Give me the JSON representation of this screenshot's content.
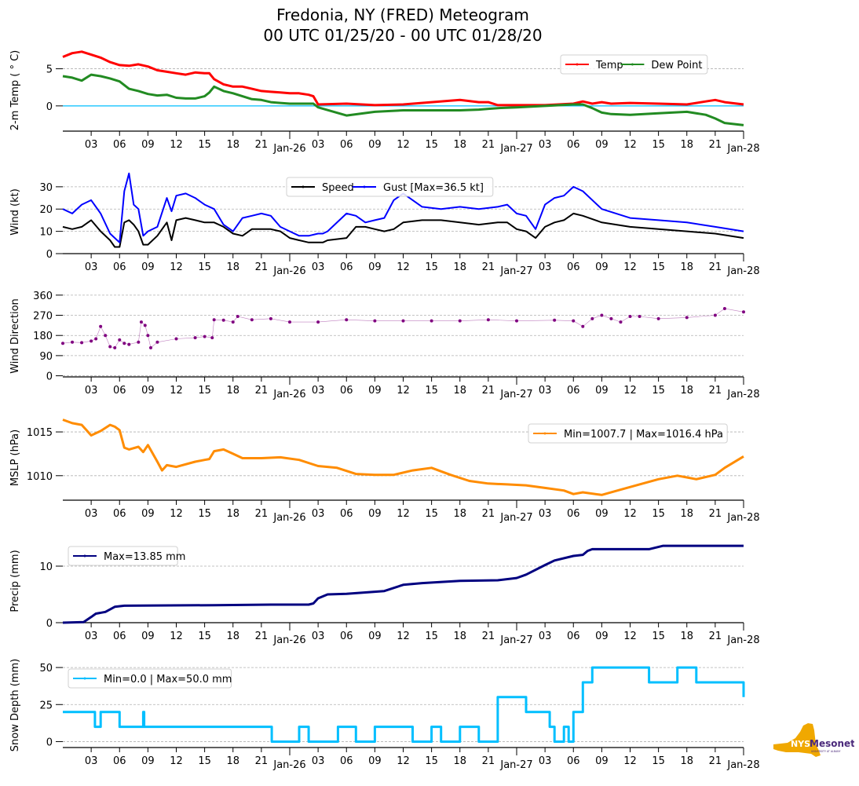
{
  "title": {
    "line1": "Fredonia, NY (FRED) Meteogram",
    "line2": "00 UTC 01/25/20 - 00 UTC 01/28/20"
  },
  "logo": {
    "text": "NYS",
    "brand": "Mesonet",
    "sub": "UNIVERSITY AT ALBANY",
    "gold": "#f0a800",
    "purple": "#4b2a7b"
  },
  "chart_data": [
    {
      "id": "temp",
      "type": "line",
      "ylabel": "2-m Temp ( ° C)",
      "ylim": [
        -3.4,
        7.6
      ],
      "yticks": [
        0,
        5
      ],
      "grid": "horizontal-dashed",
      "legend": {
        "placement": "top-right",
        "ncol": 2
      },
      "reference_line": {
        "y": 0,
        "color": "#00bfff"
      },
      "x_hours": [
        0,
        1,
        2,
        3,
        4,
        5,
        6,
        7,
        8,
        9,
        10,
        11,
        12,
        13,
        14,
        15,
        15.5,
        16,
        17,
        18,
        19,
        20,
        21,
        22,
        23,
        24,
        25,
        26,
        26.5,
        27,
        30,
        33,
        36,
        39,
        42,
        44,
        45,
        46,
        48,
        51,
        54,
        55,
        56,
        57,
        58,
        60,
        63,
        66,
        68,
        69,
        70,
        72
      ],
      "series": [
        {
          "name": "Temp",
          "color": "#ff0000",
          "values": [
            6.6,
            7.1,
            7.3,
            6.9,
            6.5,
            5.9,
            5.5,
            5.4,
            5.6,
            5.3,
            4.8,
            4.6,
            4.4,
            4.2,
            4.5,
            4.4,
            4.4,
            3.6,
            2.9,
            2.6,
            2.6,
            2.3,
            2.0,
            1.9,
            1.8,
            1.7,
            1.7,
            1.5,
            1.3,
            0.2,
            0.3,
            0.1,
            0.2,
            0.5,
            0.8,
            0.5,
            0.5,
            0.1,
            0.1,
            0.1,
            0.3,
            0.6,
            0.3,
            0.5,
            0.3,
            0.4,
            0.3,
            0.2,
            0.6,
            0.8,
            0.5,
            0.2
          ]
        },
        {
          "name": "Dew Point",
          "color": "#228b22",
          "values": [
            4.0,
            3.8,
            3.4,
            4.2,
            4.0,
            3.7,
            3.3,
            2.3,
            2.0,
            1.6,
            1.4,
            1.5,
            1.1,
            1.0,
            1.0,
            1.3,
            1.8,
            2.6,
            2.0,
            1.7,
            1.3,
            0.9,
            0.8,
            0.5,
            0.4,
            0.3,
            0.3,
            0.3,
            0.3,
            -0.2,
            -1.3,
            -0.8,
            -0.6,
            -0.6,
            -0.6,
            -0.5,
            -0.4,
            -0.3,
            -0.2,
            0.0,
            0.2,
            0.2,
            -0.3,
            -0.9,
            -1.1,
            -1.2,
            -1.0,
            -0.8,
            -1.2,
            -1.7,
            -2.3,
            -2.6
          ]
        }
      ]
    },
    {
      "id": "wind",
      "type": "line",
      "ylabel": "Wind (kt)",
      "ylim": [
        0,
        37
      ],
      "yticks": [
        0,
        10,
        20,
        30
      ],
      "grid": "horizontal-dashed",
      "legend": {
        "placement": "top-center",
        "ncol": 2
      },
      "x_hours": [
        0,
        1,
        2,
        3,
        4,
        5,
        5.5,
        6,
        6.5,
        7,
        7.5,
        8,
        8.5,
        9,
        10,
        11,
        11.5,
        12,
        13,
        14,
        15,
        16,
        17,
        18,
        19,
        20,
        21,
        22,
        23,
        24,
        25,
        26,
        27,
        27.5,
        28,
        30,
        31,
        32,
        33,
        34,
        35,
        36,
        38,
        40,
        42,
        44,
        46,
        47,
        48,
        49,
        50,
        51,
        52,
        53,
        54,
        55,
        57,
        60,
        63,
        66,
        69,
        72
      ],
      "series": [
        {
          "name": "Speed",
          "color": "#000000",
          "values": [
            12,
            11,
            12,
            15,
            10,
            6,
            3,
            3,
            14,
            15,
            13,
            10,
            4,
            4,
            8,
            14,
            6,
            15,
            16,
            15,
            14,
            14,
            12,
            9,
            8,
            11,
            11,
            11,
            10,
            7,
            6,
            5,
            5,
            5,
            6,
            7,
            12,
            12,
            11,
            10,
            11,
            14,
            15,
            15,
            14,
            13,
            14,
            14,
            11,
            10,
            7,
            12,
            14,
            15,
            18,
            17,
            14,
            12,
            11,
            10,
            9,
            7
          ]
        },
        {
          "name": "Gust [Max=36.5 kt]",
          "color": "#0000ff",
          "values": [
            20,
            18,
            22,
            24,
            18,
            9,
            7,
            5,
            28,
            36,
            22,
            20,
            8,
            10,
            12,
            25,
            19,
            26,
            27,
            25,
            22,
            20,
            13,
            10,
            16,
            17,
            18,
            17,
            12,
            10,
            8,
            8,
            9,
            9,
            10,
            18,
            17,
            14,
            15,
            16,
            24,
            27,
            21,
            20,
            21,
            20,
            21,
            22,
            18,
            17,
            11,
            22,
            25,
            26,
            30,
            28,
            20,
            16,
            15,
            14,
            12,
            10
          ]
        }
      ]
    },
    {
      "id": "wdir",
      "type": "scatter",
      "ylabel": "Wind Direction",
      "ylim": [
        -5,
        370
      ],
      "yticks": [
        0,
        90,
        180,
        270,
        360
      ],
      "grid": "horizontal-dashed",
      "x_hours": [
        0,
        1,
        2,
        3,
        3.5,
        4,
        4.5,
        5,
        5.5,
        6,
        6.5,
        7,
        8,
        8.3,
        8.7,
        9,
        9.3,
        10,
        12,
        14,
        15,
        15.8,
        16,
        17,
        18,
        18.5,
        20,
        22,
        24,
        27,
        30,
        33,
        36,
        39,
        42,
        45,
        48,
        52,
        54,
        55,
        56,
        57,
        58,
        59,
        60,
        61,
        63,
        66,
        69,
        70,
        72
      ],
      "series": [
        {
          "name": "Wind Direction",
          "color": "#800080",
          "values": [
            145,
            150,
            148,
            155,
            165,
            220,
            180,
            130,
            125,
            160,
            145,
            140,
            150,
            240,
            225,
            180,
            125,
            150,
            165,
            170,
            175,
            170,
            250,
            248,
            240,
            265,
            250,
            255,
            240,
            240,
            250,
            245,
            245,
            245,
            245,
            250,
            245,
            248,
            245,
            220,
            255,
            270,
            255,
            240,
            265,
            265,
            255,
            260,
            270,
            300,
            285
          ]
        }
      ]
    },
    {
      "id": "mslp",
      "type": "line",
      "ylabel": "MSLP (hPa)",
      "ylim": [
        1007.2,
        1016.8
      ],
      "yticks": [
        1010,
        1015
      ],
      "grid": "horizontal-dashed",
      "legend": {
        "placement": "top-right",
        "ncol": 1
      },
      "x_hours": [
        0,
        1,
        2,
        2.5,
        3,
        4,
        5,
        5.5,
        6,
        6.5,
        7,
        8,
        8.5,
        9,
        10,
        10.5,
        11,
        12,
        14,
        15,
        15.5,
        16,
        17,
        18,
        19,
        21,
        23,
        25,
        27,
        29,
        31,
        33,
        35,
        37,
        39,
        41,
        43,
        45,
        47,
        49,
        51,
        53,
        54,
        55,
        57,
        59,
        61,
        63,
        65,
        66,
        67,
        69,
        70,
        72
      ],
      "series": [
        {
          "name": "Min=1007.7 | Max=1016.4 hPa",
          "color": "#ff8c00",
          "values": [
            1016.4,
            1016.0,
            1015.8,
            1015.2,
            1014.6,
            1015.1,
            1015.8,
            1015.6,
            1015.2,
            1013.2,
            1013.0,
            1013.3,
            1012.7,
            1013.5,
            1011.6,
            1010.6,
            1011.2,
            1011.0,
            1011.6,
            1011.8,
            1011.9,
            1012.8,
            1013.0,
            1012.5,
            1012.0,
            1012.0,
            1012.1,
            1011.8,
            1011.1,
            1010.9,
            1010.2,
            1010.1,
            1010.1,
            1010.6,
            1010.9,
            1010.1,
            1009.4,
            1009.1,
            1009.0,
            1008.9,
            1008.6,
            1008.3,
            1007.9,
            1008.1,
            1007.8,
            1008.4,
            1009.0,
            1009.6,
            1010.0,
            1009.8,
            1009.6,
            1010.1,
            1010.9,
            1012.2
          ]
        }
      ]
    },
    {
      "id": "precip",
      "type": "line",
      "ylabel": "Precip (mm)",
      "ylim": [
        0,
        15
      ],
      "yticks": [
        0,
        10
      ],
      "grid": "horizontal-dashed",
      "legend": {
        "placement": "top-left",
        "ncol": 1
      },
      "x_hours": [
        0,
        2.2,
        3,
        3.5,
        4.5,
        5.5,
        6.5,
        16,
        22,
        26,
        26.5,
        27,
        28,
        30,
        34,
        36,
        38,
        42,
        46,
        48,
        49,
        51,
        52,
        54,
        55,
        55.5,
        56,
        62,
        63.5,
        72
      ],
      "series": [
        {
          "name": "Max=13.85 mm",
          "color": "#000080",
          "values": [
            0,
            0.1,
            1.0,
            1.6,
            1.9,
            2.8,
            3.0,
            3.1,
            3.2,
            3.2,
            3.4,
            4.3,
            5.0,
            5.1,
            5.6,
            6.7,
            7.0,
            7.4,
            7.5,
            7.9,
            8.5,
            10.2,
            11.0,
            11.8,
            12.0,
            12.7,
            13.0,
            13.0,
            13.6,
            13.6
          ]
        }
      ]
    },
    {
      "id": "snow",
      "type": "line",
      "ylabel": "Snow Depth (mm)",
      "ylim": [
        -4,
        58
      ],
      "yticks": [
        0,
        25,
        50
      ],
      "grid": "horizontal-dashed",
      "legend": {
        "placement": "top-left",
        "ncol": 1
      },
      "x_hours": [
        0,
        3.3,
        3.4,
        4,
        6,
        8.5,
        8.6,
        22,
        22.1,
        25,
        26,
        29,
        29.1,
        31,
        33,
        37,
        39,
        40,
        42,
        44,
        45,
        46,
        49,
        50,
        51,
        51.5,
        52,
        53,
        53.5,
        54,
        55,
        56,
        59,
        62,
        65,
        67,
        68,
        69,
        72
      ],
      "series": [
        {
          "name": "Min=0.0 | Max=50.0 mm",
          "color": "#00bfff",
          "values": [
            20,
            20,
            10,
            20,
            10,
            20,
            10,
            10,
            0,
            10,
            0,
            0,
            10,
            0,
            10,
            0,
            10,
            0,
            10,
            0,
            0,
            30,
            20,
            20,
            20,
            10,
            0,
            10,
            0,
            20,
            40,
            50,
            50,
            40,
            50,
            40,
            40,
            40,
            30
          ]
        }
      ]
    }
  ],
  "x_axis": {
    "start": "00 UTC 01/25/20",
    "end": "00 UTC 01/28/20",
    "hours_total": 72,
    "tick_labels": [
      "03",
      "06",
      "09",
      "12",
      "15",
      "18",
      "21",
      "Jan-26",
      "03",
      "06",
      "09",
      "12",
      "15",
      "18",
      "21",
      "Jan-27",
      "03",
      "06",
      "09",
      "12",
      "15",
      "18",
      "21",
      "Jan-28"
    ]
  }
}
